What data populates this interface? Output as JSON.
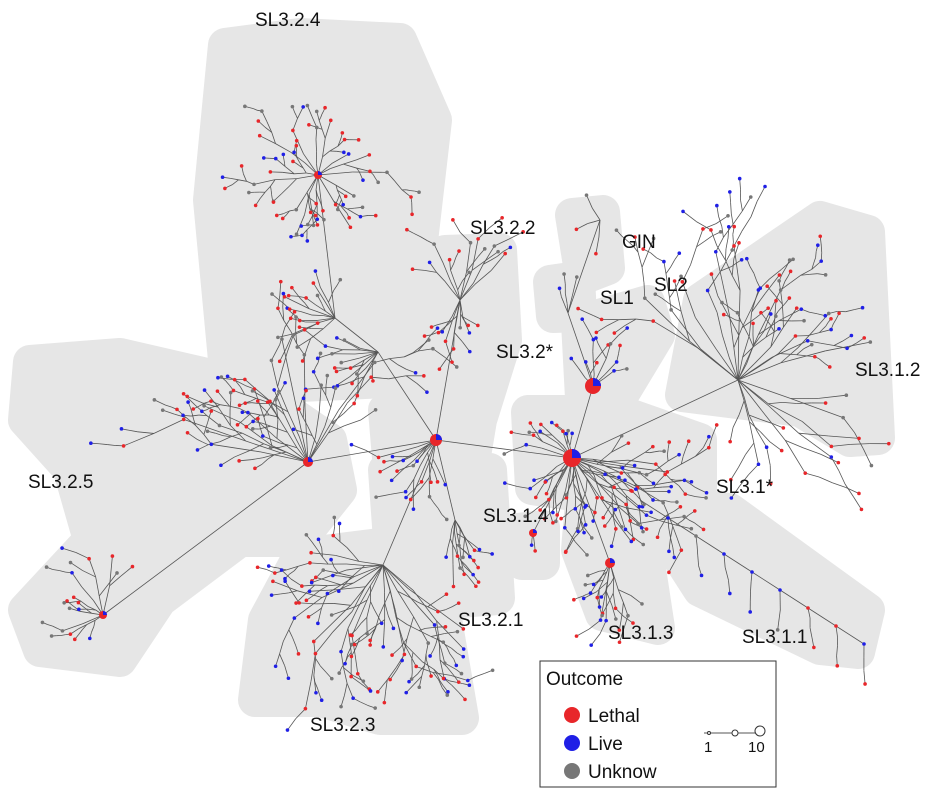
{
  "clusters": [
    "SL3.2.4",
    "SL3.2.2",
    "GIN",
    "SL1",
    "SL2",
    "SL3.2*",
    "SL3.1.2",
    "SL3.2.5",
    "SL3.1*",
    "SL3.1.4",
    "SL3.2.1",
    "SL3.1.3",
    "SL3.1.1",
    "SL3.2.3"
  ],
  "legend": {
    "title": "Outcome",
    "items": [
      {
        "label": "Lethal",
        "color": "#e8262a"
      },
      {
        "label": "Live",
        "color": "#1f1fe6"
      },
      {
        "label": "Unknow",
        "color": "#777777"
      }
    ],
    "size_scale": [
      "1",
      "10"
    ]
  }
}
